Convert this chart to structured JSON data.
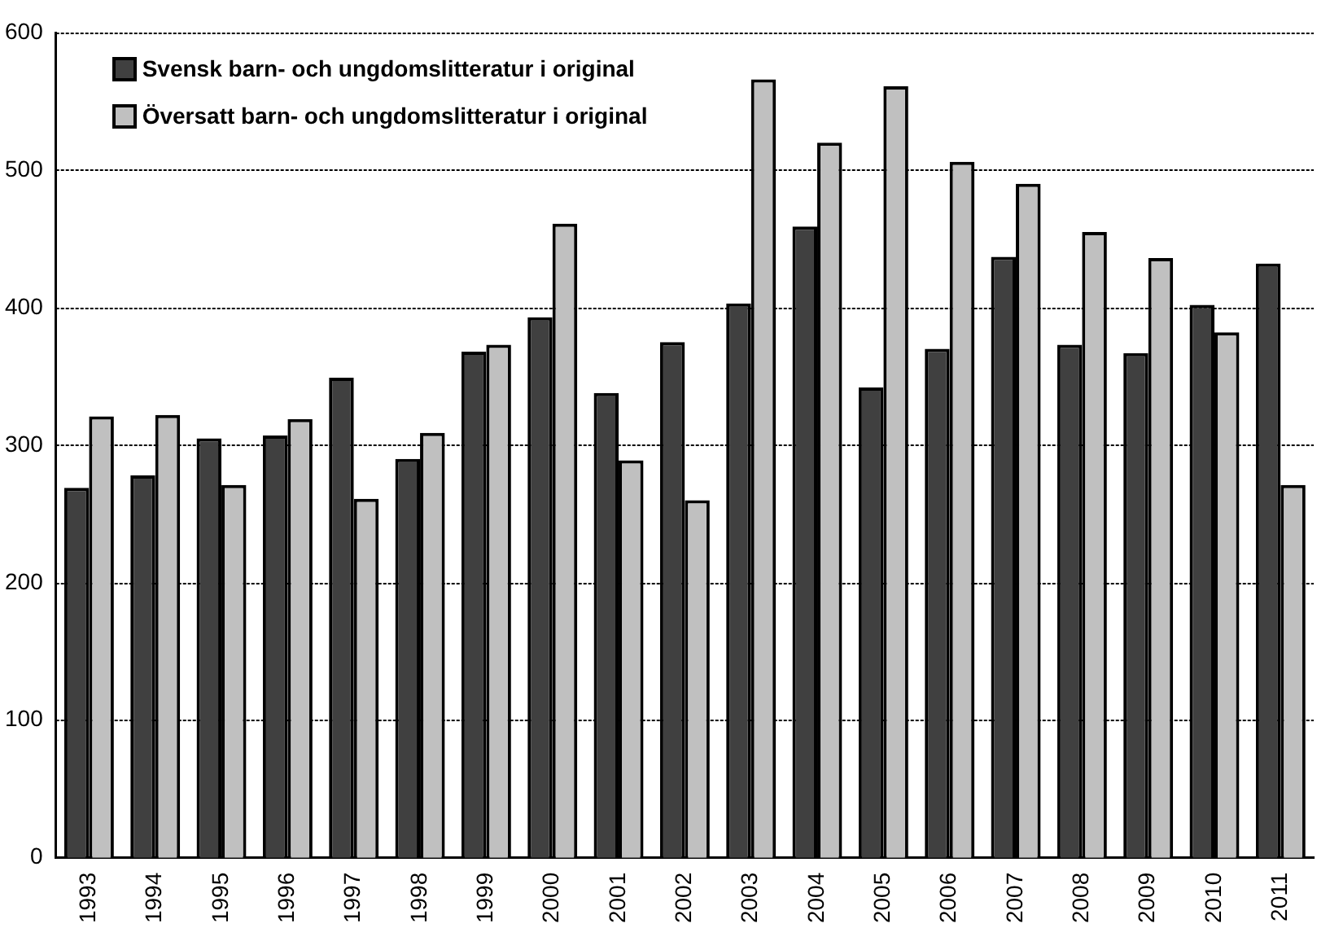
{
  "chart_data": {
    "type": "bar",
    "categories": [
      "1993",
      "1994",
      "1995",
      "1996",
      "1997",
      "1998",
      "1999",
      "2000",
      "2001",
      "2002",
      "2003",
      "2004",
      "2005",
      "2006",
      "2007",
      "2008",
      "2009",
      "2010",
      "2011"
    ],
    "series": [
      {
        "name": "Svensk barn- och ungdomslitteratur i original",
        "color": "#404040",
        "values": [
          269,
          278,
          305,
          307,
          349,
          290,
          368,
          393,
          338,
          375,
          403,
          459,
          342,
          370,
          437,
          373,
          367,
          402,
          432
        ]
      },
      {
        "name": "Översatt barn- och ungdomslitteratur i original",
        "color": "#c0c0c0",
        "values": [
          321,
          322,
          271,
          319,
          261,
          309,
          373,
          461,
          289,
          260,
          566,
          520,
          561,
          506,
          490,
          455,
          436,
          382,
          271
        ]
      }
    ],
    "ylim": [
      0,
      600
    ],
    "yticks": [
      0,
      100,
      200,
      300,
      400,
      500,
      600
    ],
    "grid": "y",
    "legend": "top left"
  }
}
